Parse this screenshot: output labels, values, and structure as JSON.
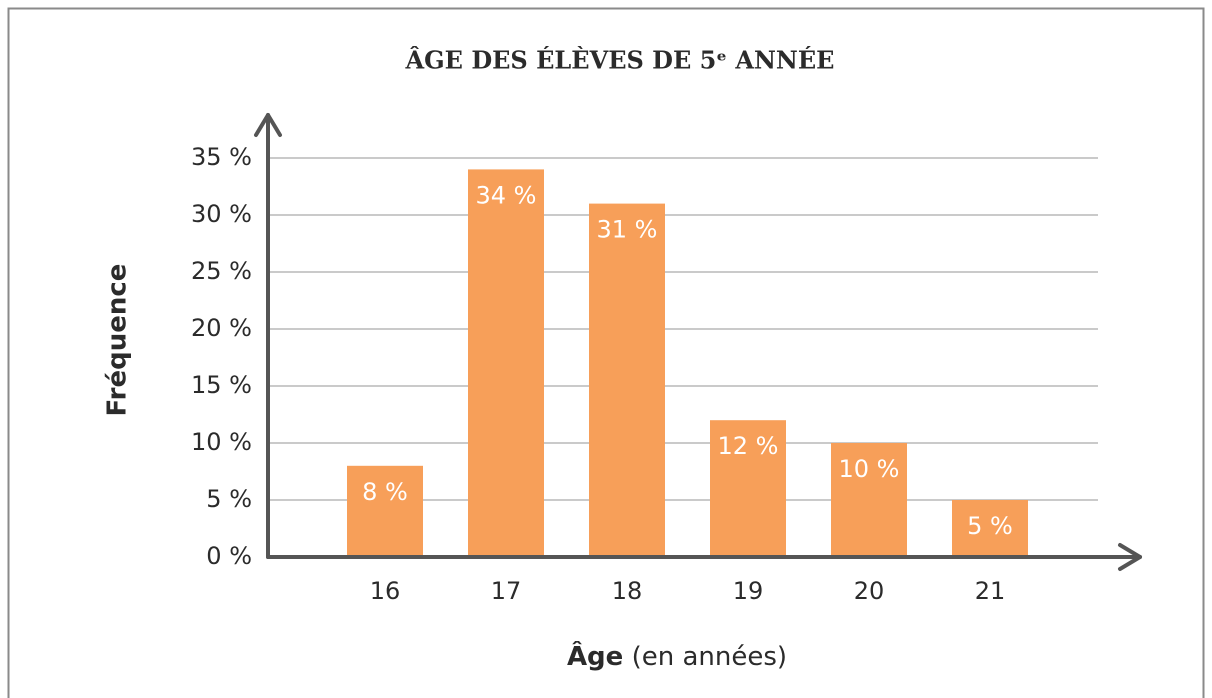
{
  "chart_data": {
    "type": "bar",
    "title": "ÂGE DES ÉLÈVES DE 5ᵉ ANNÉE",
    "xlabel": [
      "Âge",
      "(en années)"
    ],
    "ylabel": "Fréquence",
    "categories": [
      "16",
      "17",
      "18",
      "19",
      "20",
      "21"
    ],
    "values": [
      8,
      34,
      31,
      12,
      10,
      5
    ],
    "value_labels": [
      "8 %",
      "34 %",
      "31 %",
      "12 %",
      "10 %",
      "5 %"
    ],
    "color": "#f79f59",
    "ylim": [
      0,
      35
    ],
    "yticks": [
      {
        "value": 0,
        "label": "0 %"
      },
      {
        "value": 5,
        "label": "5 %"
      },
      {
        "value": 10,
        "label": "10 %"
      },
      {
        "value": 15,
        "label": "15 %"
      },
      {
        "value": 20,
        "label": "20 %"
      },
      {
        "value": 25,
        "label": "25 %"
      },
      {
        "value": 30,
        "label": "30 %"
      },
      {
        "value": 35,
        "label": "35 %"
      }
    ],
    "grid": true
  }
}
